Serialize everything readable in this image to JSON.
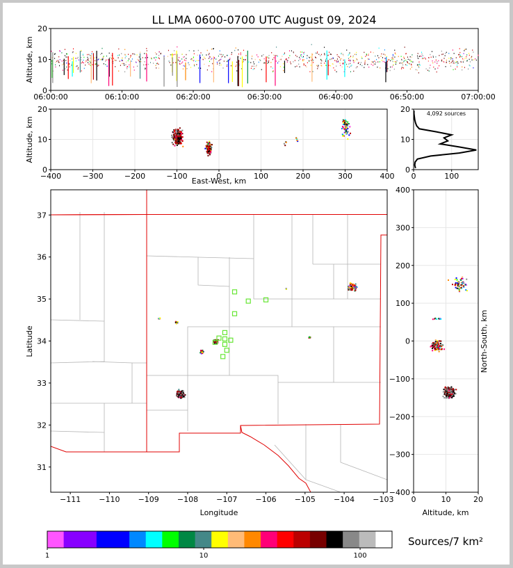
{
  "title": "LL LMA 0600-0700 UTC August 09, 2024",
  "colors": {
    "frame_bg": "#c8c8c8",
    "state_border": "#e00000",
    "county": "#b4b4b4",
    "station": "#66e633",
    "grid": "#e6e6e6"
  },
  "chart_data": [
    {
      "type": "scatter",
      "name": "altitude-vs-time",
      "ylabel": "Altitude, km",
      "ylim": [
        0,
        20
      ],
      "yticks": [
        "0",
        "10",
        "20"
      ],
      "xticks": [
        "06:00:00",
        "06:10:00",
        "06:20:00",
        "06:30:00",
        "06:40:00",
        "06:50:00",
        "07:00:00"
      ],
      "xlim_min": [
        0,
        60
      ],
      "grid": false
    },
    {
      "type": "scatter",
      "name": "altitude-vs-east-west",
      "xlabel": "East-West, km",
      "ylabel": "Altitude, km",
      "xlim": [
        -400,
        400
      ],
      "ylim": [
        0,
        20
      ],
      "xticks": [
        "−400",
        "−300",
        "−200",
        "−100",
        "0",
        "100",
        "200",
        "300",
        "400"
      ],
      "yticks": [
        "0",
        "10",
        "20"
      ],
      "clusters_km": [
        {
          "x": -100,
          "alt": 11
        },
        {
          "x": -25,
          "alt": 7
        },
        {
          "x": 300,
          "alt": 14
        },
        {
          "x": 185,
          "alt": 10
        },
        {
          "x": 155,
          "alt": 9
        }
      ],
      "grid": true
    },
    {
      "type": "line",
      "name": "source-altitude-histogram",
      "annotation": "4,092 sources",
      "xticks": [
        "0",
        "100"
      ],
      "yticks": [
        "0",
        "10",
        "20"
      ],
      "xlim": [
        0,
        170
      ],
      "ylim": [
        0,
        20
      ],
      "profile": [
        {
          "alt": 0.5,
          "count": 5
        },
        {
          "alt": 1.5,
          "count": 3
        },
        {
          "alt": 2.5,
          "count": 4
        },
        {
          "alt": 3.5,
          "count": 10
        },
        {
          "alt": 4.5,
          "count": 45
        },
        {
          "alt": 5.5,
          "count": 120
        },
        {
          "alt": 6.5,
          "count": 165
        },
        {
          "alt": 7.5,
          "count": 120
        },
        {
          "alt": 8.5,
          "count": 70
        },
        {
          "alt": 9.5,
          "count": 90
        },
        {
          "alt": 10.5,
          "count": 80
        },
        {
          "alt": 11.5,
          "count": 100
        },
        {
          "alt": 12.5,
          "count": 60
        },
        {
          "alt": 13.5,
          "count": 15
        },
        {
          "alt": 14.5,
          "count": 8
        },
        {
          "alt": 15.5,
          "count": 5
        },
        {
          "alt": 16.5,
          "count": 3
        },
        {
          "alt": 17.5,
          "count": 2
        },
        {
          "alt": 18.5,
          "count": 1
        },
        {
          "alt": 19.5,
          "count": 1
        }
      ]
    },
    {
      "type": "scatter",
      "name": "plan-view-map",
      "xlabel": "Longitude",
      "ylabel": "Latitude",
      "xlim": [
        -111.5,
        -102.9
      ],
      "ylim": [
        30.4,
        37.6
      ],
      "xticks": [
        "−111",
        "−110",
        "−109",
        "−108",
        "−107",
        "−106",
        "−105",
        "−104",
        "−103"
      ],
      "yticks": [
        "31",
        "32",
        "33",
        "34",
        "35",
        "36",
        "37"
      ],
      "source_clusters": [
        {
          "lon": -108.2,
          "lat": 32.75
        },
        {
          "lon": -107.3,
          "lat": 34.0
        },
        {
          "lon": -107.65,
          "lat": 33.75
        },
        {
          "lon": -103.8,
          "lat": 35.3
        },
        {
          "lon": -108.3,
          "lat": 34.45
        },
        {
          "lon": -108.75,
          "lat": 34.55
        },
        {
          "lon": -104.9,
          "lat": 34.1
        },
        {
          "lon": -105.5,
          "lat": 35.25
        }
      ],
      "stations": [
        {
          "lon": -106.8,
          "lat": 35.17
        },
        {
          "lon": -106.45,
          "lat": 34.95
        },
        {
          "lon": -106.0,
          "lat": 34.98
        },
        {
          "lon": -106.8,
          "lat": 34.65
        },
        {
          "lon": -107.05,
          "lat": 34.2
        },
        {
          "lon": -107.2,
          "lat": 34.07
        },
        {
          "lon": -107.05,
          "lat": 34.05
        },
        {
          "lon": -106.9,
          "lat": 34.02
        },
        {
          "lon": -107.05,
          "lat": 33.92
        },
        {
          "lon": -107.0,
          "lat": 33.78
        },
        {
          "lon": -107.1,
          "lat": 33.63
        },
        {
          "lon": -107.3,
          "lat": 33.97
        }
      ],
      "grid": false
    },
    {
      "type": "scatter",
      "name": "north-south-vs-altitude",
      "xlabel": "Altitude, km",
      "ylabel": "North-South, km",
      "xlim": [
        0,
        20
      ],
      "ylim": [
        -400,
        400
      ],
      "xticks": [
        "0",
        "10",
        "20"
      ],
      "yticks": [
        "−400",
        "−300",
        "−200",
        "−100",
        "0",
        "100",
        "200",
        "300",
        "400"
      ],
      "clusters": [
        {
          "alt": 11,
          "ns": -135
        },
        {
          "alt": 7,
          "ns": -10
        },
        {
          "alt": 14,
          "ns": 150
        },
        {
          "alt": 7,
          "ns": 60
        }
      ],
      "grid": true
    },
    {
      "type": "heatmap",
      "name": "colorbar",
      "label": "Sources/7 km²",
      "ticks": [
        "1",
        "10",
        "100"
      ],
      "scale": "log",
      "range": [
        1,
        160
      ],
      "colors": [
        "#ff55ff",
        "#8800ff",
        "#8800ff",
        "#0000ff",
        "#0000ff",
        "#0088ff",
        "#00ffff",
        "#00ff00",
        "#008844",
        "#448888",
        "#ffff00",
        "#ffbb77",
        "#ff8800",
        "#ff0077",
        "#ff0000",
        "#bb0000",
        "#770000",
        "#000000",
        "#888888",
        "#bbbbbb",
        "#ffffff"
      ]
    }
  ]
}
